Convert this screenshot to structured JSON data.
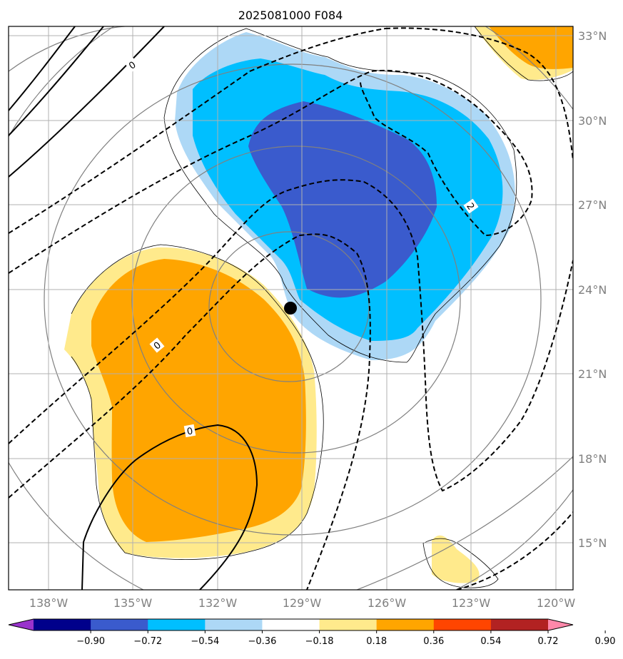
{
  "title": "2025081000 F084",
  "map": {
    "lon_range": [
      "139°W",
      "119.5°W"
    ],
    "lat_range": [
      "13.5°N",
      "33.5°N"
    ],
    "grid": true,
    "lat_labels": [
      "33°N",
      "30°N",
      "27°N",
      "24°N",
      "21°N",
      "18°N",
      "15°N"
    ],
    "lon_labels": [
      "138°W",
      "135°W",
      "132°W",
      "129°W",
      "126°W",
      "123°W",
      "120°W"
    ],
    "contour_labels": [
      "0",
      "0",
      "0",
      "2"
    ],
    "storm_center": {
      "lat": 23.3,
      "lon": "129.4°W"
    }
  },
  "colorbar": {
    "ticks": [
      "−0.90",
      "−0.72",
      "−0.54",
      "−0.36",
      "−0.18",
      "0.18",
      "0.36",
      "0.54",
      "0.72",
      "0.90"
    ],
    "colors": [
      "#9933cc",
      "#00008b",
      "#3a5bcd",
      "#00bfff",
      "#add8f6",
      "#ffffff",
      "#ffea8c",
      "#ffa500",
      "#ff4500",
      "#b22222",
      "#ff88aa"
    ],
    "extend": "both"
  }
}
